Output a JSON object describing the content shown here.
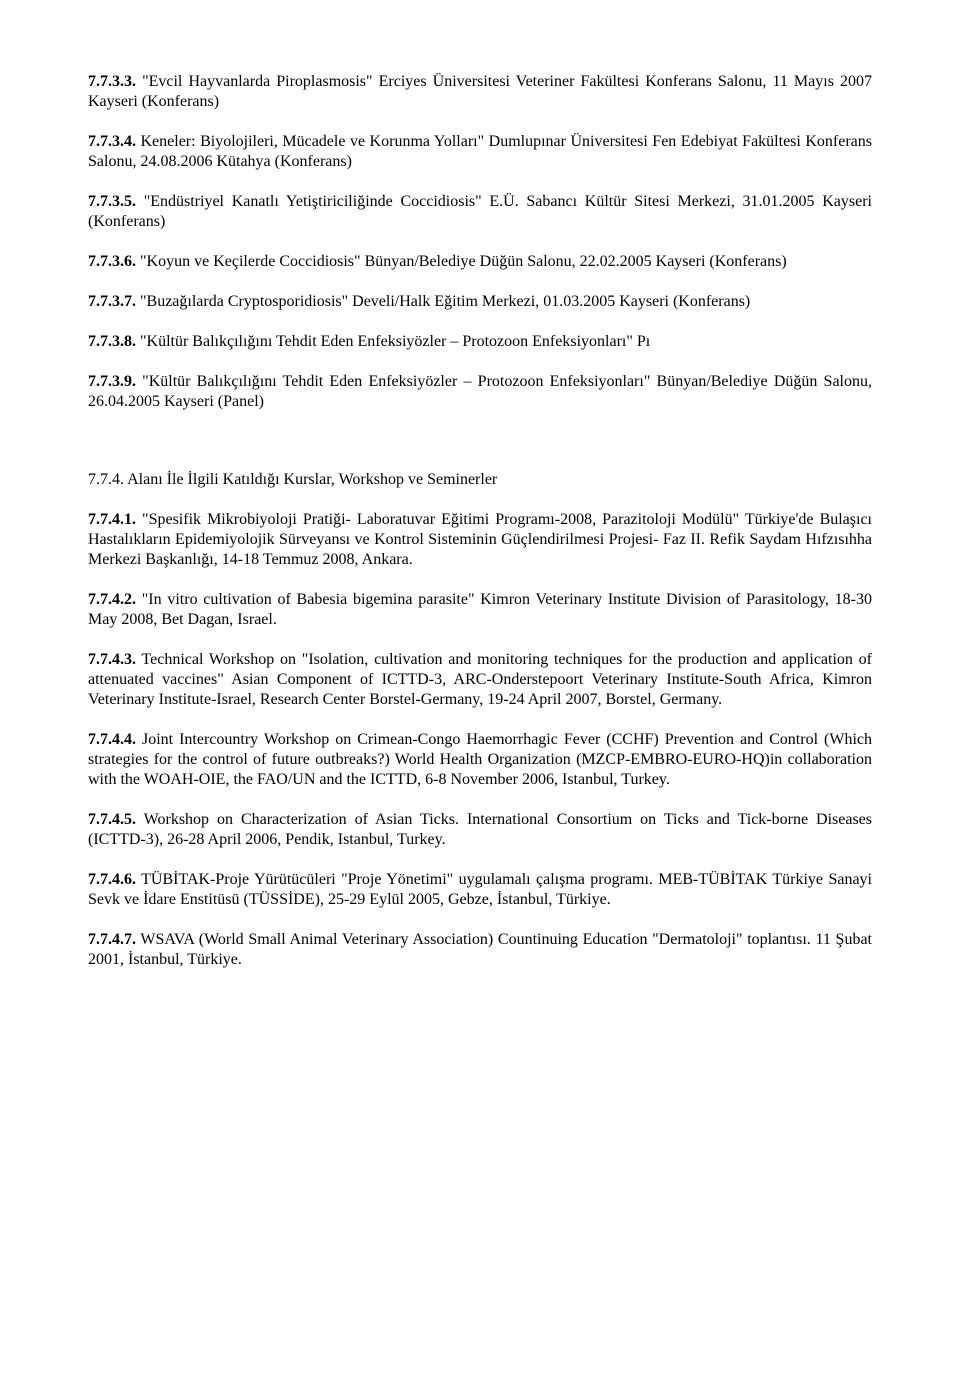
{
  "entries": [
    {
      "num": "7.7.3.3.",
      "text": " \"Evcil Hayvanlarda Piroplasmosis\" Erciyes Üniversitesi Veteriner Fakültesi Konferans Salonu, 11 Mayıs 2007 Kayseri (Konferans)"
    },
    {
      "num": "7.7.3.4.",
      "text": " Keneler: Biyolojileri, Mücadele ve Korunma Yolları\" Dumlupınar Üniversitesi Fen Edebiyat Fakültesi Konferans Salonu, 24.08.2006 Kütahya (Konferans)"
    },
    {
      "num": "7.7.3.5.",
      "text": " \"Endüstriyel Kanatlı Yetiştiriciliğinde Coccidiosis\" E.Ü. Sabancı Kültür Sitesi Merkezi, 31.01.2005 Kayseri (Konferans)"
    },
    {
      "num": "7.7.3.6.",
      "text": " \"Koyun ve Keçilerde Coccidiosis\" Bünyan/Belediye Düğün Salonu, 22.02.2005 Kayseri (Konferans)"
    },
    {
      "num": "7.7.3.7.",
      "text": " \"Buzağılarda Cryptosporidiosis\" Develi/Halk Eğitim Merkezi, 01.03.2005 Kayseri (Konferans)"
    },
    {
      "num": "7.7.3.8.",
      "text": " \"Kültür Balıkçılığını Tehdit Eden Enfeksiyözler – Protozoon Enfeksiyonları\" Pı"
    },
    {
      "num": "7.7.3.9.",
      "text": " \"Kültür Balıkçılığını Tehdit Eden Enfeksiyözler – Protozoon Enfeksiyonları\" Bünyan/Belediye Düğün Salonu, 26.04.2005 Kayseri (Panel)"
    }
  ],
  "heading_774": "7.7.4. Alanı İle İlgili Katıldığı Kurslar, Workshop ve Seminerler",
  "entries2": [
    {
      "num": "7.7.4.1.",
      "text": " \"Spesifik Mikrobiyoloji Pratiği- Laboratuvar Eğitimi Programı-2008, Parazitoloji Modülü\" Türkiye'de Bulaşıcı Hastalıkların Epidemiyolojik Sürveyansı ve Kontrol Sisteminin Güçlendirilmesi Projesi- Faz II. Refik Saydam Hıfzısıhha Merkezi Başkanlığı, 14-18 Temmuz 2008, Ankara."
    },
    {
      "num": "7.7.4.2.",
      "text": " \"In vitro cultivation of Babesia bigemina parasite\" Kimron Veterinary Institute Division of Parasitology, 18-30 May 2008, Bet Dagan, Israel."
    },
    {
      "num": "7.7.4.3.",
      "text": " Technical Workshop on \"Isolation, cultivation and monitoring techniques for the production and application of attenuated vaccines\" Asian Component of ICTTD-3, ARC-Onderstepoort Veterinary Institute-South Africa, Kimron Veterinary Institute-Israel, Research Center Borstel-Germany, 19-24 April 2007, Borstel, Germany."
    },
    {
      "num": "7.7.4.4.",
      "text": " Joint Intercountry Workshop on Crimean-Congo Haemorrhagic Fever (CCHF) Prevention and Control (Which strategies for the control of future outbreaks?) World Health Organization (MZCP-EMBRO-EURO-HQ)in collaboration with the WOAH-OIE, the FAO/UN and the ICTTD, 6-8 November 2006, Istanbul, Turkey."
    },
    {
      "num": "7.7.4.5.",
      "text": " Workshop on Characterization of Asian Ticks. International Consortium on Ticks and Tick-borne Diseases (ICTTD-3), 26-28 April 2006, Pendik, Istanbul, Turkey."
    },
    {
      "num": "7.7.4.6.",
      "text": " TÜBİTAK-Proje Yürütücüleri \"Proje Yönetimi\" uygulamalı çalışma programı. MEB-TÜBİTAK Türkiye Sanayi Sevk ve İdare Enstitüsü (TÜSSİDE), 25-29 Eylül 2005, Gebze, İstanbul, Türkiye."
    },
    {
      "num": "7.7.4.7.",
      "text": " WSAVA (World Small Animal Veterinary Association) Countinuing Education \"Dermatoloji\" toplantısı. 11 Şubat 2001, İstanbul, Türkiye."
    }
  ]
}
